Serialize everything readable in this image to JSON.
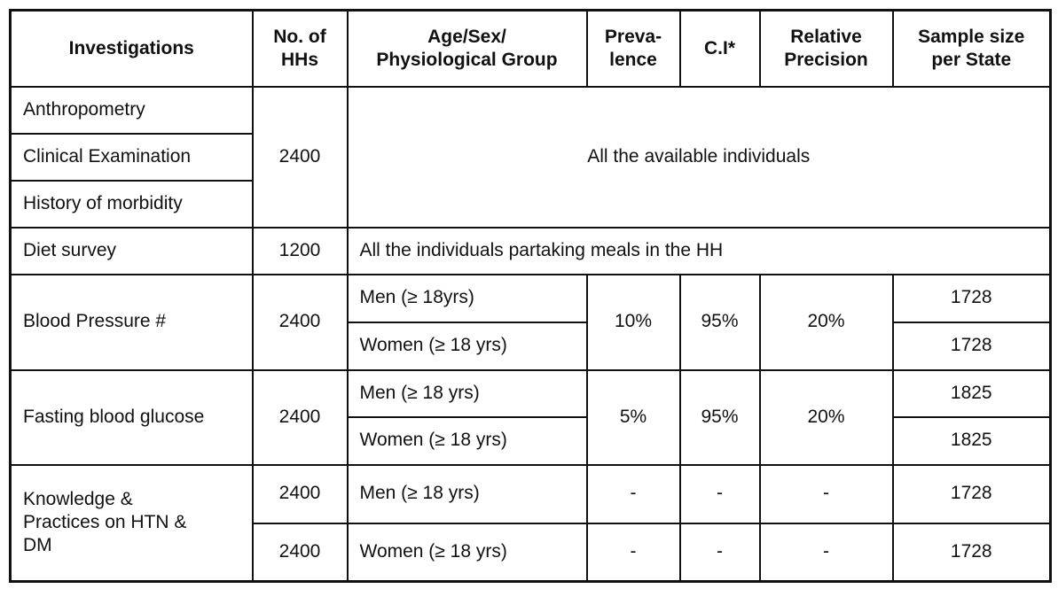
{
  "table": {
    "headers": [
      "Investigations",
      "No. of\nHHs",
      "Age/Sex/\nPhysiological Group",
      "Preva-\nlence",
      "C.I*",
      "Relative\nPrecision",
      "Sample size\nper State"
    ],
    "groups": {
      "anthropometry": {
        "rows": [
          "Anthropometry",
          "Clinical Examination",
          "History of morbidity"
        ],
        "hhs": "2400",
        "note": "All the available individuals"
      },
      "diet": {
        "label": "Diet survey",
        "hhs": "1200",
        "note": "All the individuals partaking meals in the HH"
      },
      "blood_pressure": {
        "label": "Blood Pressure #",
        "hhs": "2400",
        "men": "Men (≥ 18yrs)",
        "women": "Women (≥ 18 yrs)",
        "prevalence": "10%",
        "ci": "95%",
        "relative_precision": "20%",
        "sample_men": "1728",
        "sample_women": "1728"
      },
      "fasting_glucose": {
        "label": "Fasting blood glucose",
        "hhs": "2400",
        "men": "Men (≥ 18 yrs)",
        "women": "Women (≥ 18 yrs)",
        "prevalence": "5%",
        "ci": "95%",
        "relative_precision": "20%",
        "sample_men": "1825",
        "sample_women": "1825"
      },
      "knowledge": {
        "label": "Knowledge &\nPractices on HTN &\nDM",
        "hhs_men": "2400",
        "hhs_women": "2400",
        "men": "Men (≥ 18 yrs)",
        "women": "Women (≥ 18 yrs)",
        "prevalence_men": "-",
        "ci_men": "-",
        "precision_men": "-",
        "prevalence_women": "-",
        "ci_women": "-",
        "precision_women": "-",
        "sample_men": "1728",
        "sample_women": "1728"
      }
    }
  }
}
